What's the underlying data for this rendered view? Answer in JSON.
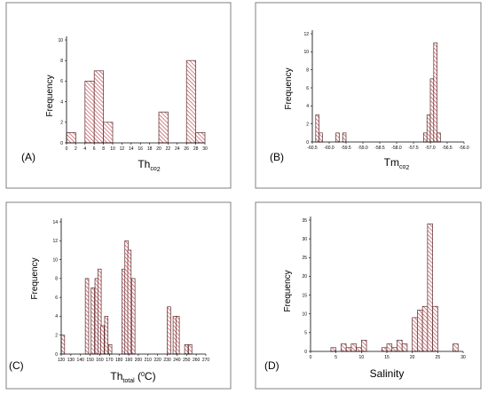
{
  "colors": {
    "bar_stroke": "#5a2a2a",
    "hatch": "#c0505a",
    "bar_fill": "#ffffff"
  },
  "chart_data": [
    {
      "type": "bar",
      "panel_label": "(A)",
      "xlabel_main": "Th",
      "xlabel_sub": "co",
      "xlabel_sub2": "2",
      "ylabel": "Frequency",
      "xlim": [
        0,
        30
      ],
      "ylim": [
        0,
        10
      ],
      "xticks": [
        "0",
        "2",
        "4",
        "6",
        "8",
        "10",
        "12",
        "14",
        "16",
        "18",
        "20",
        "22",
        "24",
        "26",
        "28",
        "30"
      ],
      "yticks": [
        "0",
        "2",
        "4",
        "6",
        "8",
        "10"
      ],
      "bin_width": 2,
      "bins": [
        0,
        4,
        6,
        8,
        20,
        26,
        28
      ],
      "values": [
        1,
        6,
        7,
        2,
        3,
        8,
        1
      ]
    },
    {
      "type": "bar",
      "panel_label": "(B)",
      "xlabel_main": "Tm",
      "xlabel_sub": "co",
      "xlabel_sub2": "2",
      "ylabel": "Frequency",
      "xlim": [
        -60.5,
        -56.0
      ],
      "ylim": [
        0,
        12
      ],
      "xticks": [
        "-60.5",
        "-60.0",
        "-59.5",
        "-59.0",
        "-58.5",
        "-58.0",
        "-57.5",
        "-57.0",
        "-56.5",
        "-56.0"
      ],
      "yticks": [
        "0",
        "2",
        "4",
        "6",
        "8",
        "10",
        "12"
      ],
      "bin_width": 0.1,
      "bins": [
        -60.4,
        -60.3,
        -59.8,
        -59.6,
        -57.2,
        -57.1,
        -57.0,
        -56.9,
        -56.8
      ],
      "values": [
        3,
        1,
        1,
        1,
        1,
        3,
        7,
        11,
        1
      ]
    },
    {
      "type": "bar",
      "panel_label": "(C)",
      "xlabel_main": "Th",
      "xlabel_sub": "total",
      "xlabel_unit": " (",
      "xlabel_deg": "0",
      "xlabel_unit2": "C)",
      "ylabel": "Frequency",
      "xlim": [
        120,
        270
      ],
      "ylim": [
        0,
        14
      ],
      "xticks": [
        "120",
        "130",
        "140",
        "150",
        "160",
        "170",
        "180",
        "190",
        "200",
        "210",
        "220",
        "230",
        "240",
        "250",
        "260",
        "270"
      ],
      "yticks": [
        "0",
        "2",
        "4",
        "6",
        "8",
        "10",
        "12",
        "14"
      ],
      "bin_width": 3.5,
      "bins": [
        120,
        145,
        151,
        155,
        158,
        161,
        165,
        169,
        183,
        186,
        189,
        193,
        197,
        230,
        236,
        239,
        248,
        252
      ],
      "values": [
        2,
        8,
        7,
        8,
        9,
        3,
        4,
        1,
        9,
        12,
        11,
        8,
        0,
        5,
        4,
        4,
        1,
        1
      ]
    },
    {
      "type": "bar",
      "panel_label": "(D)",
      "xlabel_main": "Salinity",
      "ylabel": "Frequency",
      "xlim": [
        0,
        30
      ],
      "ylim": [
        0,
        35
      ],
      "xticks": [
        "0",
        "5",
        "10",
        "15",
        "20",
        "25",
        "30"
      ],
      "yticks": [
        "0",
        "5",
        "10",
        "15",
        "20",
        "25",
        "30",
        "35"
      ],
      "bin_width": 1,
      "bins": [
        4,
        6,
        7,
        8,
        9,
        10,
        14,
        15,
        16,
        17,
        18,
        20,
        21,
        22,
        23,
        24,
        28
      ],
      "values": [
        1,
        2,
        1,
        2,
        1,
        3,
        1,
        2,
        1,
        3,
        2,
        9,
        11,
        12,
        34,
        12,
        2
      ]
    }
  ]
}
